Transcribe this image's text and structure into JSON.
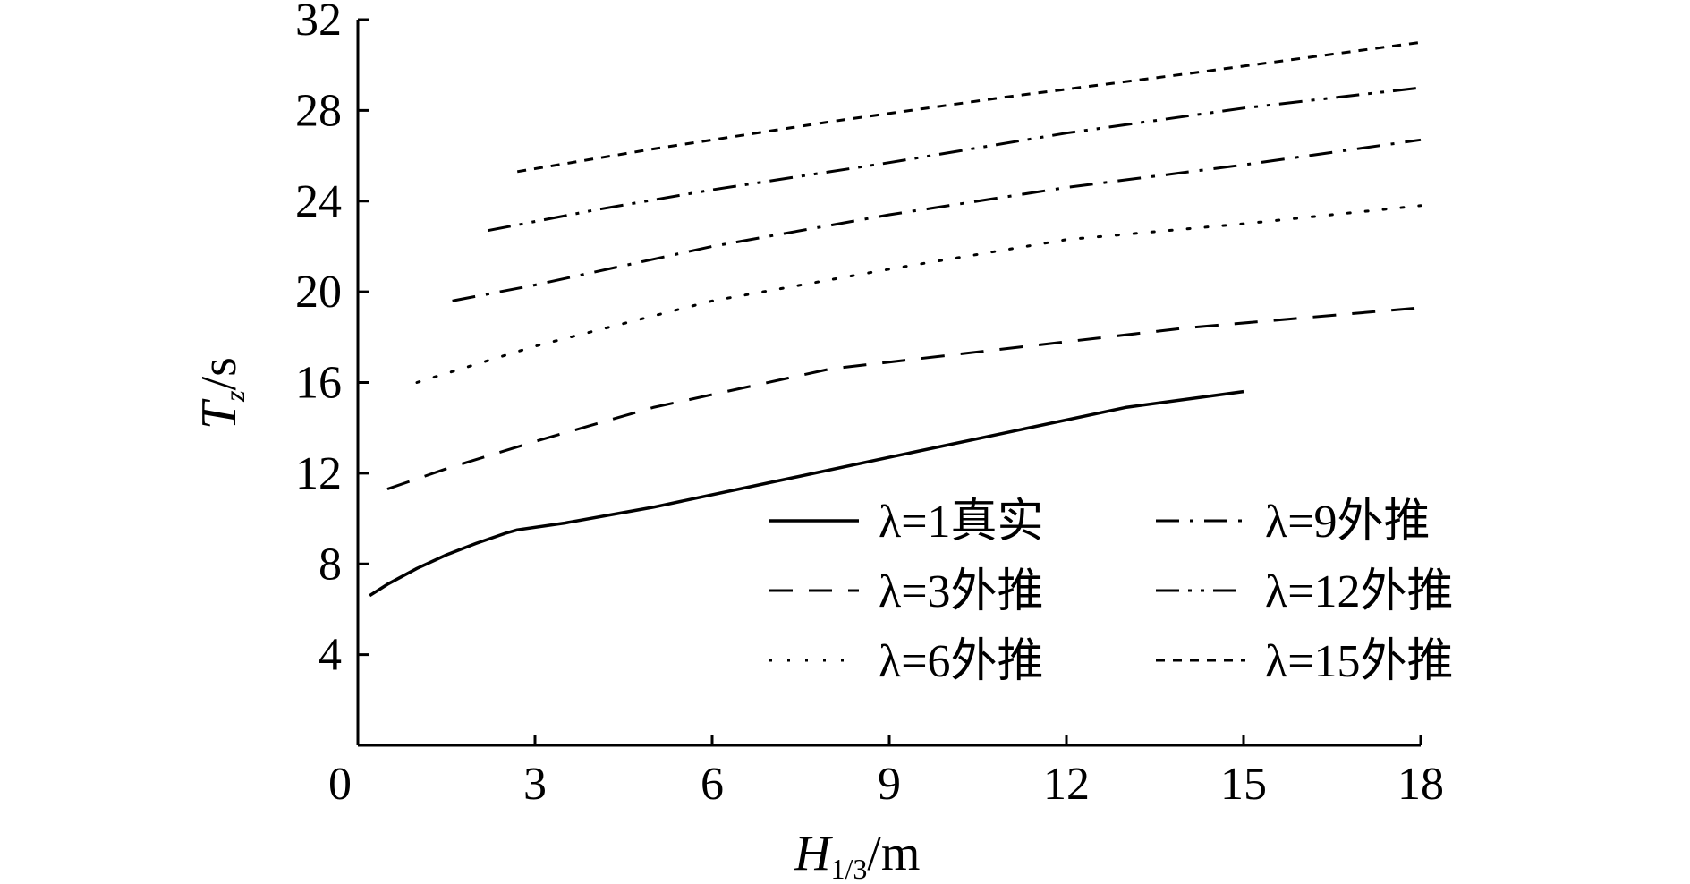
{
  "chart_data": {
    "type": "line",
    "xlabel": {
      "main": "H",
      "sub": "1/3",
      "unit": "/m"
    },
    "ylabel": {
      "main": "T",
      "sub": "z",
      "unit": "/s"
    },
    "xlim": [
      0,
      18
    ],
    "ylim": [
      0,
      32
    ],
    "xticks": [
      0,
      3,
      6,
      9,
      12,
      15,
      18
    ],
    "yticks": [
      4,
      8,
      12,
      16,
      20,
      24,
      28,
      32
    ],
    "grid": false,
    "legend_position": "lower-right",
    "series": [
      {
        "name": "λ=1真实",
        "style": "solid",
        "x": [
          0.2,
          0.5,
          1.0,
          1.5,
          2.0,
          2.5,
          2.7,
          3.5,
          5,
          7,
          9,
          11,
          13,
          15
        ],
        "y": [
          6.6,
          7.1,
          7.8,
          8.4,
          8.9,
          9.35,
          9.5,
          9.8,
          10.5,
          11.6,
          12.7,
          13.8,
          14.9,
          15.6
        ]
      },
      {
        "name": "λ=3外推",
        "style": "dashed",
        "x": [
          0.5,
          1.5,
          3,
          5,
          8,
          11,
          14,
          18
        ],
        "y": [
          11.3,
          12.2,
          13.4,
          14.9,
          16.6,
          17.5,
          18.4,
          19.3
        ]
      },
      {
        "name": "λ=6外推",
        "style": "dotted",
        "x": [
          1.0,
          3,
          6,
          9,
          12,
          15,
          18
        ],
        "y": [
          16.0,
          17.6,
          19.6,
          21.0,
          22.3,
          23.0,
          23.8
        ]
      },
      {
        "name": "λ=9外推",
        "style": "dash-dot",
        "x": [
          1.6,
          3,
          6,
          9,
          12,
          15,
          18
        ],
        "y": [
          19.6,
          20.3,
          22.0,
          23.4,
          24.6,
          25.6,
          26.7
        ]
      },
      {
        "name": "λ=12外推",
        "style": "dash-dot-dot",
        "x": [
          2.2,
          4,
          6,
          9,
          12,
          15,
          18
        ],
        "y": [
          22.7,
          23.6,
          24.5,
          25.7,
          27.0,
          28.1,
          29.0
        ]
      },
      {
        "name": "λ=15外推",
        "style": "short-dash",
        "x": [
          2.7,
          5,
          8,
          11,
          14,
          18
        ],
        "y": [
          25.3,
          26.3,
          27.5,
          28.6,
          29.6,
          31.0
        ]
      }
    ]
  }
}
